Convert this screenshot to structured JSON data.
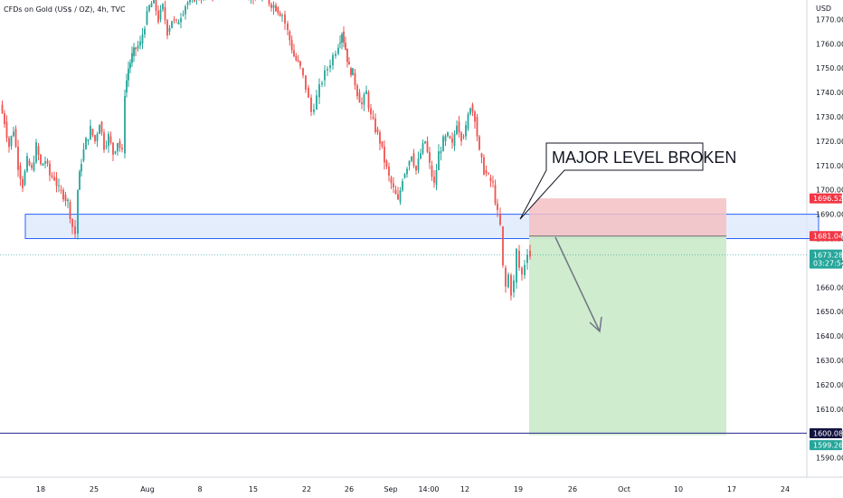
{
  "symbol_title": "CFDs on Gold (US$ / OZ), 4h, TVC",
  "currency": "USD",
  "annotation": "MAJOR LEVEL BROKEN",
  "colors": {
    "up": "#26a69a",
    "down": "#ef5350",
    "zone_fill": "#dbe7fb",
    "zone_stroke": "#2962ff",
    "stop_fill": "#f4c0c3",
    "target_fill": "#cdebcb",
    "line_purple": "#3f3d99",
    "current_tag": "#26a69a",
    "stop_tag": "#f23645",
    "entry_tag": "#f23645",
    "target_tag": "#131340",
    "target2_tag": "#26a69a",
    "arrow": "#707784"
  },
  "price_tags": {
    "stop": "1696.52",
    "entry": "1681.04",
    "current": "1673.28",
    "countdown": "03:27:54",
    "target_line": "1600.08",
    "target": "1599.26"
  },
  "chart_data": {
    "type": "candlestick",
    "title": "CFDs on Gold (US$ / OZ), 4h, TVC",
    "ylabel": "USD",
    "ylim": [
      1585,
      1775
    ],
    "y_ticks": [
      1590,
      1600,
      1610,
      1620,
      1630,
      1640,
      1650,
      1660,
      1670,
      1680,
      1690,
      1700,
      1710,
      1720,
      1730,
      1740,
      1750,
      1760,
      1770
    ],
    "x_ticks": [
      "18",
      "25",
      "Aug",
      "8",
      "15",
      "22",
      "26",
      "Sep",
      "14:00",
      "12",
      "19",
      "26",
      "Oct",
      "10",
      "17",
      "24"
    ],
    "price_path": [
      [
        0,
        1735
      ],
      [
        5,
        1728
      ],
      [
        10,
        1718
      ],
      [
        15,
        1725
      ],
      [
        20,
        1710
      ],
      [
        25,
        1702
      ],
      [
        30,
        1712
      ],
      [
        35,
        1708
      ],
      [
        40,
        1718
      ],
      [
        45,
        1710
      ],
      [
        50,
        1712
      ],
      [
        55,
        1706
      ],
      [
        60,
        1705
      ],
      [
        65,
        1700
      ],
      [
        70,
        1698
      ],
      [
        75,
        1695
      ],
      [
        80,
        1685
      ],
      [
        83,
        1682
      ],
      [
        86,
        1700
      ],
      [
        90,
        1712
      ],
      [
        95,
        1720
      ],
      [
        100,
        1725
      ],
      [
        105,
        1720
      ],
      [
        110,
        1728
      ],
      [
        115,
        1718
      ],
      [
        120,
        1722
      ],
      [
        125,
        1715
      ],
      [
        130,
        1720
      ],
      [
        135,
        1715
      ],
      [
        138,
        1740
      ],
      [
        142,
        1750
      ],
      [
        146,
        1755
      ],
      [
        150,
        1758
      ],
      [
        155,
        1760
      ],
      [
        160,
        1768
      ],
      [
        165,
        1775
      ],
      [
        170,
        1778
      ],
      [
        175,
        1770
      ],
      [
        180,
        1775
      ],
      [
        185,
        1765
      ],
      [
        190,
        1770
      ],
      [
        195,
        1768
      ],
      [
        200,
        1772
      ],
      [
        205,
        1776
      ],
      [
        210,
        1778
      ],
      [
        215,
        1779
      ],
      [
        225,
        1780
      ],
      [
        240,
        1782
      ],
      [
        260,
        1783
      ],
      [
        280,
        1780
      ],
      [
        295,
        1778
      ],
      [
        305,
        1775
      ],
      [
        312,
        1772
      ],
      [
        318,
        1765
      ],
      [
        325,
        1755
      ],
      [
        332,
        1750
      ],
      [
        338,
        1742
      ],
      [
        344,
        1732
      ],
      [
        350,
        1738
      ],
      [
        356,
        1745
      ],
      [
        362,
        1750
      ],
      [
        368,
        1755
      ],
      [
        374,
        1760
      ],
      [
        378,
        1765
      ],
      [
        382,
        1758
      ],
      [
        386,
        1750
      ],
      [
        390,
        1748
      ],
      [
        395,
        1740
      ],
      [
        400,
        1735
      ],
      [
        405,
        1740
      ],
      [
        410,
        1730
      ],
      [
        415,
        1725
      ],
      [
        420,
        1720
      ],
      [
        425,
        1712
      ],
      [
        430,
        1705
      ],
      [
        435,
        1700
      ],
      [
        440,
        1695
      ],
      [
        445,
        1705
      ],
      [
        450,
        1710
      ],
      [
        455,
        1715
      ],
      [
        460,
        1708
      ],
      [
        465,
        1715
      ],
      [
        470,
        1720
      ],
      [
        475,
        1710
      ],
      [
        480,
        1702
      ],
      [
        485,
        1715
      ],
      [
        490,
        1720
      ],
      [
        495,
        1722
      ],
      [
        500,
        1718
      ],
      [
        505,
        1728
      ],
      [
        510,
        1722
      ],
      [
        515,
        1725
      ],
      [
        520,
        1735
      ],
      [
        525,
        1730
      ],
      [
        530,
        1715
      ],
      [
        535,
        1708
      ],
      [
        540,
        1705
      ],
      [
        545,
        1702
      ],
      [
        550,
        1690
      ],
      [
        553,
        1685
      ],
      [
        556,
        1668
      ],
      [
        559,
        1660
      ],
      [
        562,
        1665
      ],
      [
        565,
        1658
      ],
      [
        568,
        1662
      ],
      [
        571,
        1675
      ],
      [
        574,
        1668
      ],
      [
        577,
        1665
      ],
      [
        580,
        1670
      ],
      [
        583,
        1675
      ],
      [
        586,
        1673
      ]
    ],
    "zone": {
      "from_x": 28,
      "to_x": 905,
      "low": 1680,
      "high": 1690
    },
    "position": {
      "entry": 1681.04,
      "stop": 1696.52,
      "target": 1599.26,
      "from_x": 585,
      "to_x": 803
    },
    "target_line": 1600.08,
    "current_price": 1673.28
  }
}
